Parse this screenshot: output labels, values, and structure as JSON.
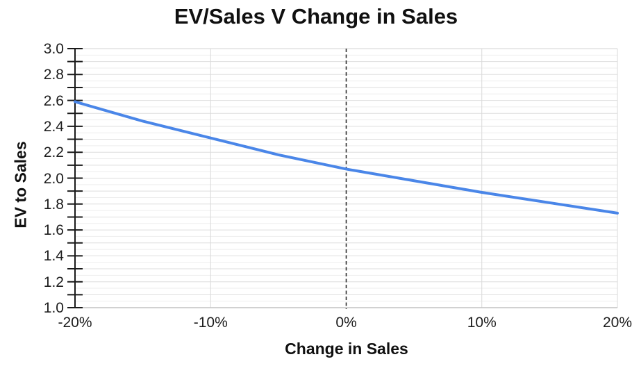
{
  "chart_data": {
    "type": "line",
    "title": "EV/Sales V Change in Sales",
    "xlabel": "Change in Sales",
    "ylabel": "EV to Sales",
    "series": [
      {
        "name": "EV to Sales",
        "x_percent": [
          -20,
          -15,
          -10,
          -5,
          0,
          5,
          10,
          15,
          20
        ],
        "values": [
          2.59,
          2.44,
          2.31,
          2.18,
          2.07,
          1.98,
          1.89,
          1.81,
          1.73
        ]
      }
    ],
    "x_tick_percent": [
      -20,
      -10,
      0,
      10,
      20
    ],
    "x_tick_labels": [
      "-20%",
      "-10%",
      "0%",
      "10%",
      "20%"
    ],
    "y_tick_values": [
      3.0,
      2.8,
      2.6,
      2.4,
      2.2,
      2.0,
      1.8,
      1.6,
      1.4,
      1.2,
      1.0
    ],
    "y_tick_labels": [
      "3.0",
      "2.8",
      "2.6",
      "2.4",
      "2.2",
      "2.0",
      "1.8",
      "1.6",
      "1.4",
      "1.2",
      "1.0"
    ],
    "y_minor_tick_step": 0.1,
    "xlim": [
      -20,
      20
    ],
    "ylim": [
      1.0,
      3.0
    ],
    "grid": "fine horizontal stripes, vertical lines at x ticks",
    "legend_position": "none",
    "colors": {
      "line": "#4a86e8",
      "axis": "#1a1a1a",
      "grid_minor": "#ededed",
      "grid_major": "#dedede",
      "grid_top": "#d3d3d3",
      "baseline": "#c2c2c2",
      "vertical_grid": "#d9d9d9",
      "zero_line": "#2b2b2b"
    },
    "annotations": [
      {
        "type": "vertical-dashed-reference-line",
        "x_percent": 0
      }
    ]
  }
}
